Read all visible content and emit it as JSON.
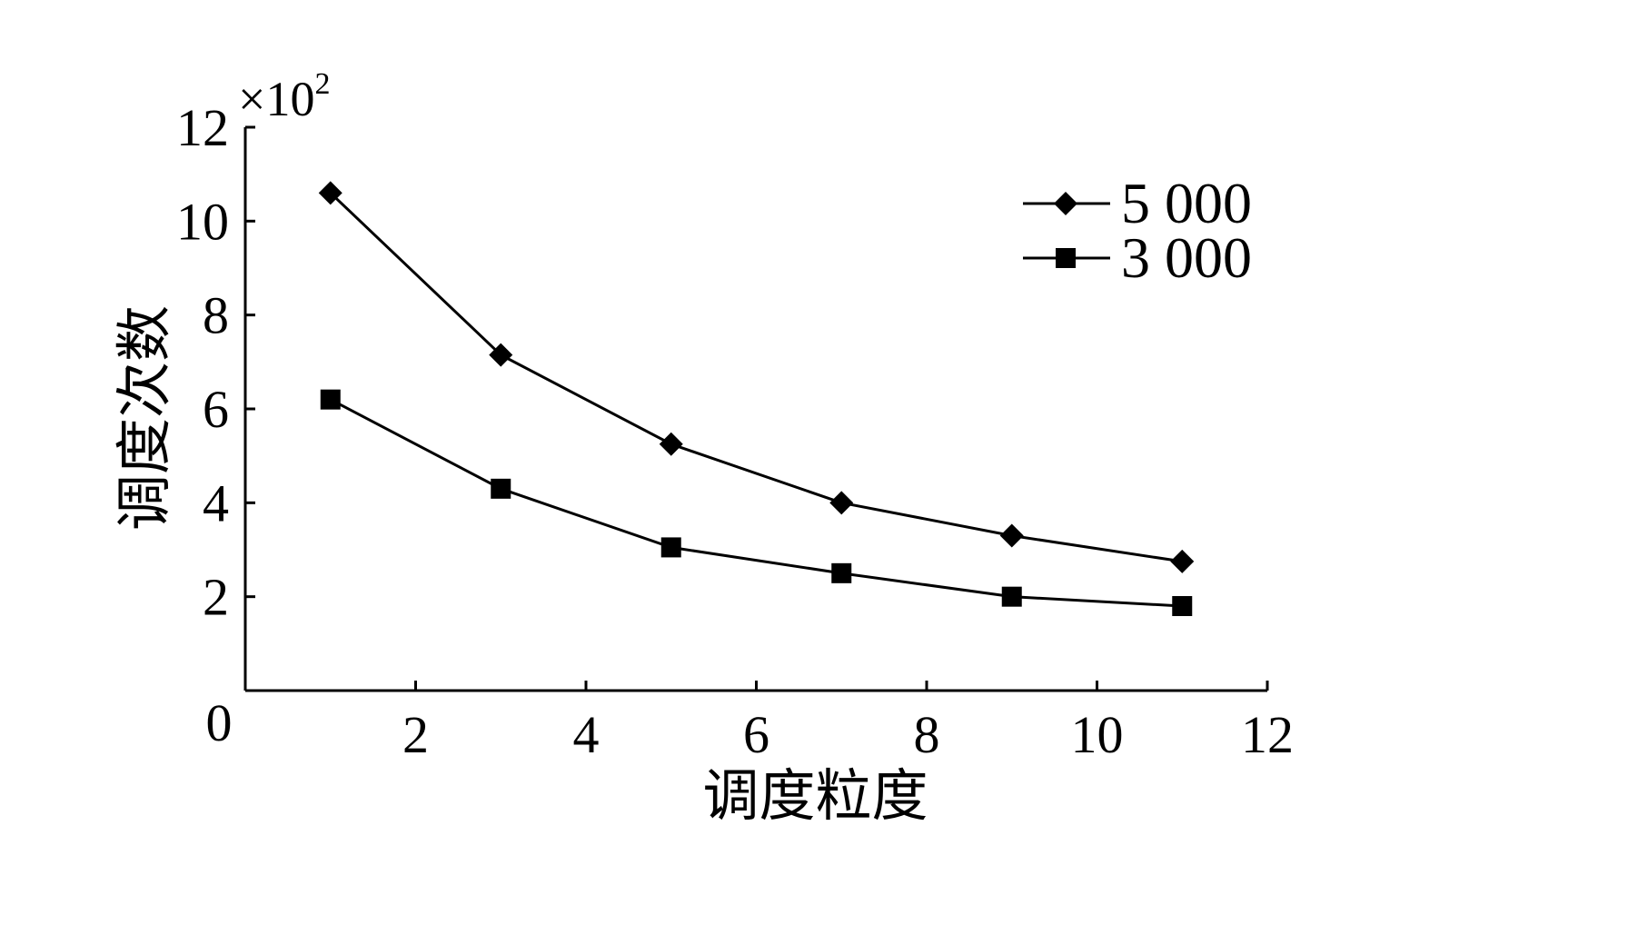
{
  "chart_data": {
    "type": "line",
    "xlabel": "调度粒度",
    "ylabel": "调度次数",
    "y_multiplier": {
      "base": "×10",
      "exponent": "2"
    },
    "xlim": [
      0,
      12
    ],
    "ylim": [
      0,
      12
    ],
    "x_ticks": [
      2,
      4,
      6,
      8,
      10,
      12
    ],
    "y_ticks": [
      2,
      4,
      6,
      8,
      10,
      12
    ],
    "origin_label": "0",
    "x_tick_labels": [
      "2",
      "4",
      "6",
      "8",
      "10",
      "12"
    ],
    "y_tick_labels": [
      "2",
      "4",
      "6",
      "8",
      "10",
      "12"
    ],
    "grid": false,
    "legend_position": "top-right",
    "series": [
      {
        "name": "5 000",
        "marker": "diamond",
        "color": "#000000",
        "x": [
          1,
          3,
          5,
          7,
          9,
          11
        ],
        "y": [
          10.6,
          7.15,
          5.25,
          4.0,
          3.3,
          2.75
        ]
      },
      {
        "name": "3 000",
        "marker": "square",
        "color": "#000000",
        "x": [
          1,
          3,
          5,
          7,
          9,
          11
        ],
        "y": [
          6.2,
          4.3,
          3.05,
          2.5,
          2.0,
          1.8
        ]
      }
    ]
  }
}
